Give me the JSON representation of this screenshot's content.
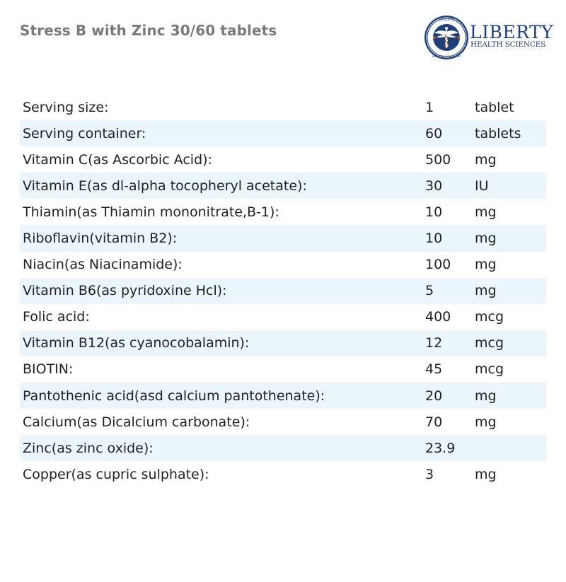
{
  "page": {
    "title": "Stress B with Zinc 30/60 tablets"
  },
  "logo": {
    "name": "LIBERTY",
    "subtitle": "HEALTH SCIENCES",
    "seal_text": "LIBERTY HEALTH SCIENCES",
    "colors": {
      "navy": "#1f3f7a",
      "orange": "#e06a1b"
    }
  },
  "table": {
    "row_alt_color": "#eaf6fc",
    "rows": [
      {
        "name": "Serving size:",
        "qty": "1",
        "unit": "tablet"
      },
      {
        "name": "Serving container:",
        "qty": "60",
        "unit": "tablets"
      },
      {
        "name": "Vitamin C(as Ascorbic Acid):",
        "qty": "500",
        "unit": "mg"
      },
      {
        "name": "Vitamin E(as dl-alpha tocopheryl acetate):",
        "qty": "30",
        "unit": "IU"
      },
      {
        "name": "Thiamin(as Thiamin mononitrate,B-1):",
        "qty": "10",
        "unit": "mg"
      },
      {
        "name": "Riboflavin(vitamin B2):",
        "qty": "10",
        "unit": "mg"
      },
      {
        "name": "Niacin(as Niacinamide):",
        "qty": "100",
        "unit": "mg"
      },
      {
        "name": "Vitamin B6(as pyridoxine Hcl):",
        "qty": "5",
        "unit": "mg"
      },
      {
        "name": "Folic acid:",
        "qty": "400",
        "unit": "mcg"
      },
      {
        "name": "Vitamin B12(as cyanocobalamin):",
        "qty": "12",
        "unit": "mcg"
      },
      {
        "name": "BIOTIN:",
        "qty": "45",
        "unit": "mcg"
      },
      {
        "name": "Pantothenic acid(asd calcium pantothenate):",
        "qty": "20",
        "unit": "mg"
      },
      {
        "name": "Calcium(as Dicalcium carbonate):",
        "qty": "70",
        "unit": "mg"
      },
      {
        "name": "Zinc(as zinc oxide):",
        "qty": "23.9",
        "unit": ""
      },
      {
        "name": "Copper(as cupric sulphate):",
        "qty": "3",
        "unit": "mg"
      }
    ]
  }
}
